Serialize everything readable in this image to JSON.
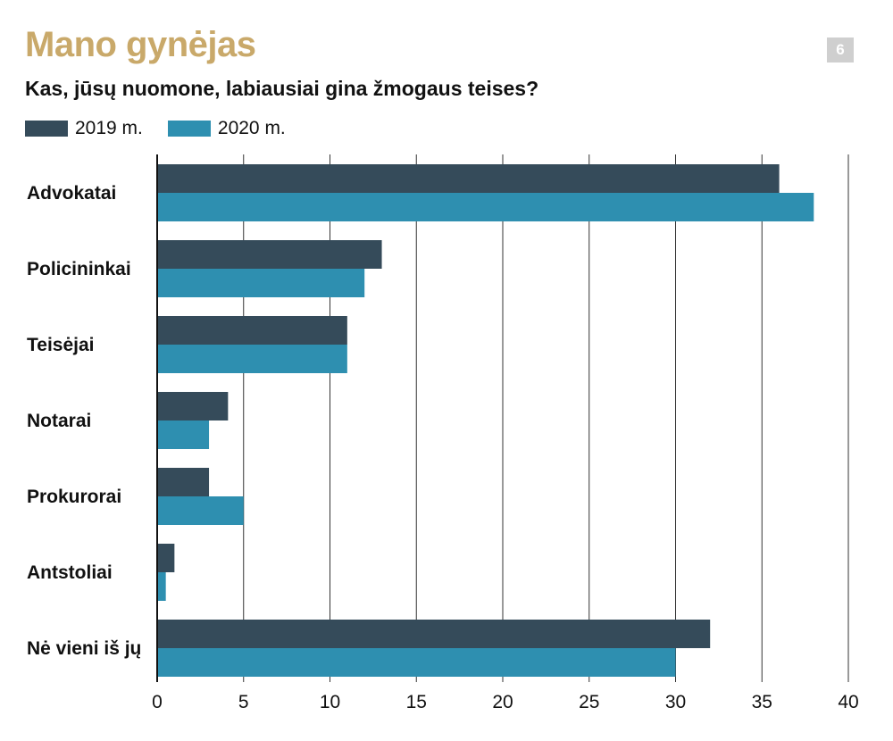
{
  "header": {
    "title": "Mano gynėjas",
    "subtitle": "Kas, jūsų nuomone, labiausiai gina žmogaus teises?",
    "badge": "6"
  },
  "colors": {
    "title": "#c9a96a",
    "series_2019": "#354b5a",
    "series_2020": "#2e8fb0",
    "grid": "#333333",
    "badge_bg": "#cfcfcf"
  },
  "chart_data": {
    "type": "bar",
    "orientation": "horizontal",
    "categories": [
      "Advokatai",
      "Policininkai",
      "Teisėjai",
      "Notarai",
      "Prokurorai",
      "Antstoliai",
      "Nė vieni iš jų"
    ],
    "series": [
      {
        "name": "2019 m.",
        "values": [
          36,
          13,
          11,
          4.1,
          3,
          1,
          32
        ]
      },
      {
        "name": "2020 m.",
        "values": [
          38,
          12,
          11,
          3,
          5,
          0.5,
          30
        ]
      }
    ],
    "xlim": [
      0,
      40
    ],
    "xticks": [
      0,
      5,
      10,
      15,
      20,
      25,
      30,
      35,
      40
    ],
    "grid": true,
    "legend": "top-left",
    "xlabel": "",
    "ylabel": ""
  }
}
